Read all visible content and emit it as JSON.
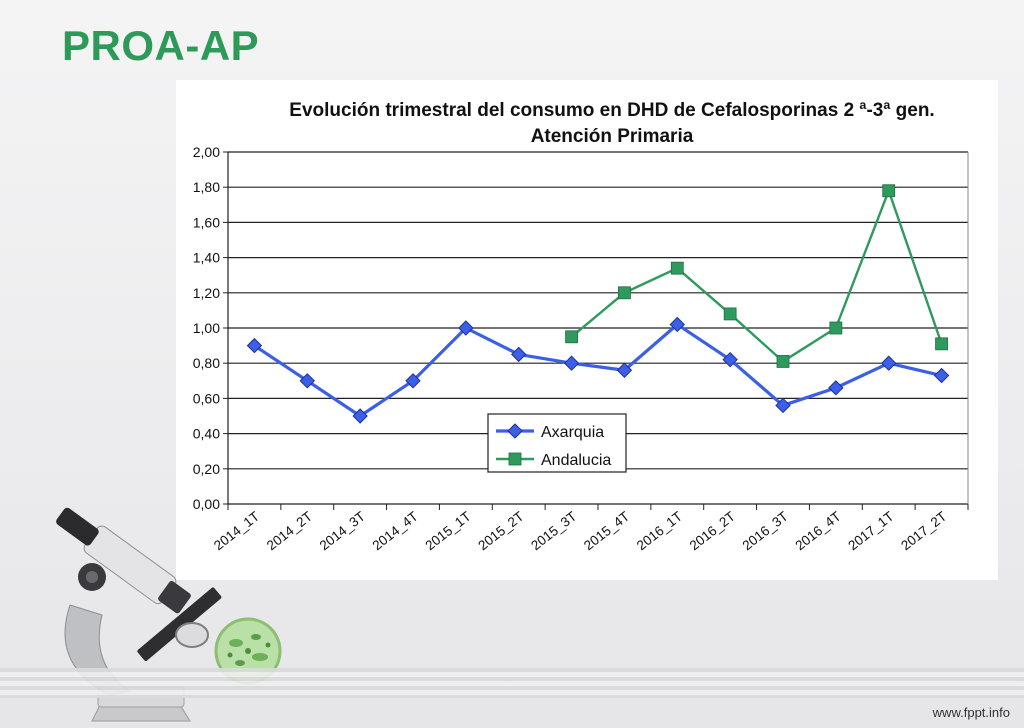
{
  "slide": {
    "title": "PROA-AP",
    "footer": "www.fppt.info"
  },
  "colors": {
    "title_green": "#2e9a5a",
    "axarquia": "#3b5fe6",
    "andalucia": "#2f9a5e"
  },
  "icons": [
    "microscope-icon",
    "bacteria-petri-icon"
  ],
  "chart_data": {
    "type": "line",
    "title_lines": [
      "Evolución trimestral del consumo en DHD de Cefalosporinas 2 ª-3ª gen.",
      "Atención Primaria"
    ],
    "categories": [
      "2014_1T",
      "2014_2T",
      "2014_3T",
      "2014_4T",
      "2015_1T",
      "2015_2T",
      "2015_3T",
      "2015_4T",
      "2016_1T",
      "2016_2T",
      "2016_3T",
      "2016_4T",
      "2017_1T",
      "2017_2T"
    ],
    "y_ticks": [
      "0,00",
      "0,20",
      "0,40",
      "0,60",
      "0,80",
      "1,00",
      "1,20",
      "1,40",
      "1,60",
      "1,80",
      "2,00"
    ],
    "ylim": [
      0,
      2
    ],
    "grid": true,
    "legend_position": "center-bottom",
    "series": [
      {
        "name": "Axarquia",
        "color": "#3b5fe6",
        "marker": "diamond",
        "values": [
          0.9,
          0.7,
          0.5,
          0.7,
          1.0,
          0.85,
          0.8,
          0.76,
          1.02,
          0.82,
          0.56,
          0.66,
          0.8,
          0.73
        ]
      },
      {
        "name": "Andalucia",
        "color": "#2f9a5e",
        "marker": "square",
        "values": [
          null,
          null,
          null,
          null,
          null,
          null,
          0.95,
          1.2,
          1.34,
          1.08,
          0.81,
          1.0,
          1.78,
          0.91
        ]
      }
    ]
  }
}
